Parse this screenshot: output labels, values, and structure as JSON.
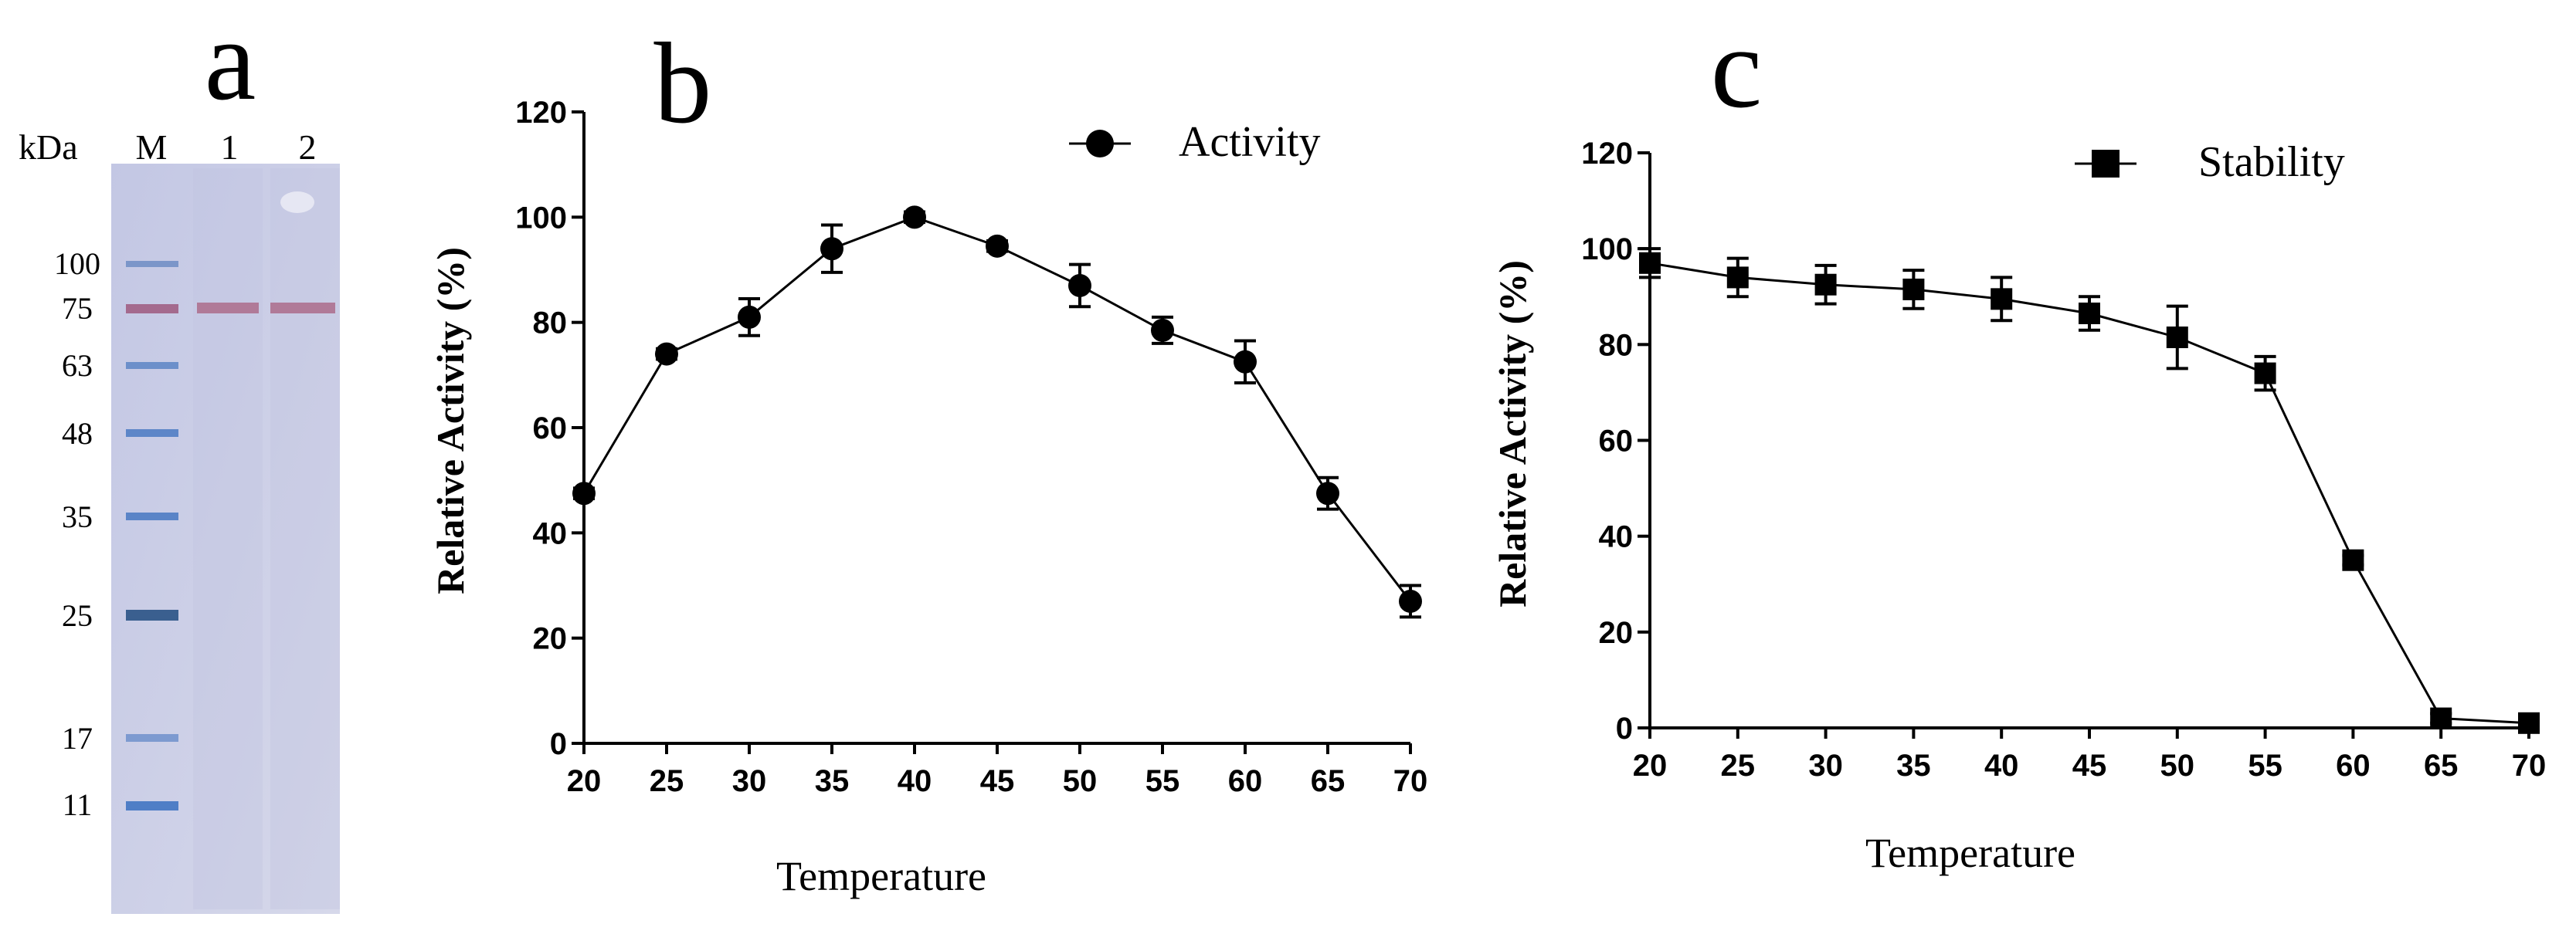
{
  "gel": {
    "panel_label": "a",
    "header": {
      "kda": "kDa",
      "lanes": [
        "M",
        "1",
        "2"
      ]
    },
    "markers": [
      "100",
      "75",
      "63",
      "48",
      "35",
      "25",
      "17",
      "11"
    ],
    "band_color": "#c86a8a",
    "ladder_color": "#3d6fb5",
    "gel_bg": "#c9cde6"
  },
  "chart_data": [
    {
      "panel_label": "b",
      "type": "line",
      "title": "",
      "xlabel": "Temperature",
      "ylabel": "Relative Activity (%)",
      "x": [
        20,
        25,
        30,
        35,
        40,
        45,
        50,
        55,
        60,
        65,
        70
      ],
      "xlim": [
        20,
        70
      ],
      "ylim": [
        0,
        120
      ],
      "yticks": [
        0,
        20,
        40,
        60,
        80,
        100,
        120
      ],
      "xticks": [
        20,
        25,
        30,
        35,
        40,
        45,
        50,
        55,
        60,
        65,
        70
      ],
      "legend": "top-right",
      "marker": "circle",
      "series": [
        {
          "name": "Activity",
          "values": [
            47.5,
            74,
            81,
            94,
            100,
            94.5,
            87,
            78.5,
            72.5,
            47.5,
            27
          ],
          "errors": [
            1,
            1,
            3.5,
            4.5,
            1,
            1,
            4,
            2.5,
            4,
            3,
            3
          ]
        }
      ]
    },
    {
      "panel_label": "c",
      "type": "line",
      "title": "",
      "xlabel": "Temperature",
      "ylabel": "Relative Activity (%)",
      "x": [
        20,
        25,
        30,
        35,
        40,
        45,
        50,
        55,
        60,
        65,
        70
      ],
      "xlim": [
        20,
        70
      ],
      "ylim": [
        0,
        120
      ],
      "yticks": [
        0,
        20,
        40,
        60,
        80,
        100,
        120
      ],
      "xticks": [
        20,
        25,
        30,
        35,
        40,
        45,
        50,
        55,
        60,
        65,
        70
      ],
      "legend": "top-right",
      "marker": "square",
      "series": [
        {
          "name": "Stability",
          "values": [
            97,
            94,
            92.5,
            91.5,
            89.5,
            86.5,
            81.5,
            74,
            35,
            2,
            1
          ],
          "errors": [
            3,
            4,
            4,
            4,
            4.5,
            3.5,
            6.5,
            3.5,
            1,
            1,
            1
          ]
        }
      ]
    }
  ]
}
